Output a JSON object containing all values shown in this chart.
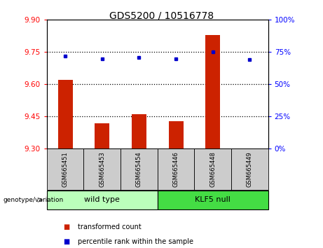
{
  "title": "GDS5200 / 10516778",
  "samples": [
    "GSM665451",
    "GSM665453",
    "GSM665454",
    "GSM665446",
    "GSM665448",
    "GSM665449"
  ],
  "transformed_counts": [
    9.62,
    9.42,
    9.46,
    9.43,
    9.83,
    9.3
  ],
  "percentile_ranks": [
    72,
    70,
    71,
    70,
    75,
    69
  ],
  "bar_bottom": 9.3,
  "ylim_left": [
    9.3,
    9.9
  ],
  "ylim_right": [
    0,
    100
  ],
  "yticks_left": [
    9.3,
    9.45,
    9.6,
    9.75,
    9.9
  ],
  "yticks_right": [
    0,
    25,
    50,
    75,
    100
  ],
  "hlines": [
    9.45,
    9.6,
    9.75
  ],
  "bar_color": "#cc2200",
  "dot_color": "#0000cc",
  "wild_type_label": "wild type",
  "klf5_label": "KLF5 null",
  "wild_type_color": "#bbffbb",
  "klf5_color": "#44dd44",
  "group_row_color": "#cccccc",
  "legend_bar_label": "transformed count",
  "legend_dot_label": "percentile rank within the sample",
  "genotype_label": "genotype/variation",
  "title_fontsize": 10,
  "tick_fontsize": 7.5,
  "sample_fontsize": 6,
  "label_fontsize": 7.5
}
